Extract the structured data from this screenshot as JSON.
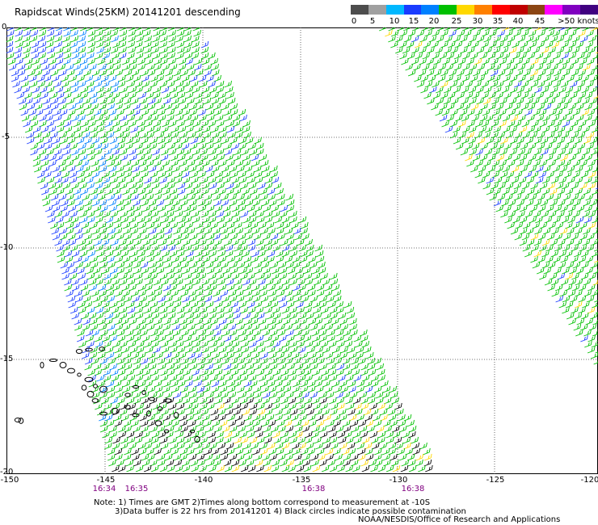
{
  "title": "Rapidscat Winds(25KM) 20141201 descending",
  "legend": {
    "labels": [
      "0",
      "5",
      "10",
      "15",
      "20",
      "25",
      "30",
      "35",
      "40",
      "45",
      ">50 knots"
    ],
    "colors": [
      "#4d4d4d",
      "#a0a0a0",
      "#00b8ff",
      "#1a3cff",
      "#0080ff",
      "#00c000",
      "#ffd800",
      "#ff8000",
      "#ff0000",
      "#c00000",
      "#8b4513",
      "#ff00ff",
      "#8000c0",
      "#400080"
    ]
  },
  "axes": {
    "y_labels": [
      "0",
      "-5",
      "-10",
      "-15",
      "-20"
    ],
    "x_labels": [
      "-150",
      "-145",
      "-140",
      "-135",
      "-130",
      "-125",
      "-120"
    ]
  },
  "times": [
    "16:34",
    "16:35",
    "16:38",
    "16:38"
  ],
  "notes": {
    "line1": "Note: 1) Times are GMT 2)Times along bottom correspond to measurement at -10S",
    "line2": "3)Data buffer is 22 hrs from 20141201 4) Black circles indicate possible contamination",
    "line3": "NOAA/NESDIS/Office of Research and Applications"
  }
}
